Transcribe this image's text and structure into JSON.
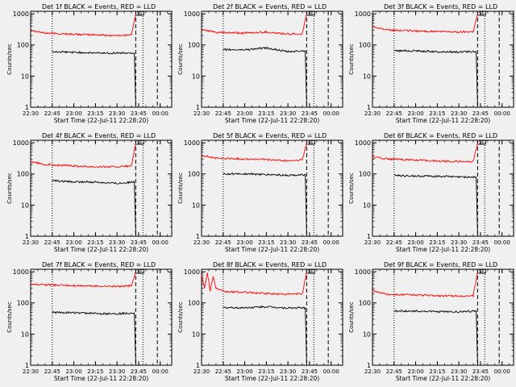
{
  "colors": {
    "background": "#f0f0f0",
    "events": "#000000",
    "lld": "#ff0000",
    "axis": "#000000"
  },
  "chart_data": [
    {
      "type": "line",
      "title": "Det 1f BLACK = Events, RED = LLD",
      "ylabel": "Counts/sec",
      "xlabel": "Start Time (22-Jul-11 22:28:20)",
      "x_ticks": [
        "22:30",
        "22:45",
        "23:00",
        "23:15",
        "23:30",
        "23:45",
        "00:00"
      ],
      "y_ticks": [
        "1",
        "10",
        "100",
        "1000"
      ],
      "yscale": "log",
      "ylim": [
        1,
        1000
      ],
      "markers": {
        "dotted": [
          "22:45",
          "23:48"
        ],
        "dashed": [
          "23:43",
          "23:58"
        ],
        "box_label": "SE"
      },
      "series": [
        {
          "color": "red",
          "x": [
            "22:30",
            "22:40",
            "23:00",
            "23:15",
            "23:30",
            "23:40",
            "23:43"
          ],
          "y": [
            300,
            240,
            220,
            210,
            200,
            210,
            1000
          ]
        },
        {
          "color": "black",
          "x": [
            "22:45",
            "23:00",
            "23:15",
            "23:30",
            "23:42",
            "23:43"
          ],
          "y": [
            60,
            58,
            55,
            55,
            55,
            1
          ]
        }
      ]
    },
    {
      "type": "line",
      "title": "Det 2f BLACK = Events, RED = LLD",
      "ylabel": "Counts/sec",
      "xlabel": "Start Time (22-Jul-11 22:28:20)",
      "x_ticks": [
        "22:30",
        "22:45",
        "23:00",
        "23:15",
        "23:30",
        "23:45",
        "00:00"
      ],
      "y_ticks": [
        "1",
        "10",
        "100",
        "1000"
      ],
      "yscale": "log",
      "ylim": [
        1,
        1000
      ],
      "markers": {
        "dotted": [
          "22:45",
          "23:48"
        ],
        "dashed": [
          "23:43",
          "23:58"
        ],
        "box_label": "SE"
      },
      "series": [
        {
          "color": "red",
          "x": [
            "22:30",
            "22:40",
            "23:00",
            "23:15",
            "23:30",
            "23:40",
            "23:43"
          ],
          "y": [
            320,
            250,
            240,
            260,
            220,
            230,
            1000
          ]
        },
        {
          "color": "black",
          "x": [
            "22:45",
            "23:00",
            "23:15",
            "23:30",
            "23:42",
            "23:43"
          ],
          "y": [
            70,
            70,
            80,
            60,
            65,
            1
          ]
        }
      ]
    },
    {
      "type": "line",
      "title": "Det 3f BLACK = Events, RED = LLD",
      "ylabel": "Counts/sec",
      "xlabel": "Start Time (22-Jul-11 22:28:20)",
      "x_ticks": [
        "22:30",
        "22:45",
        "23:00",
        "23:15",
        "23:30",
        "23:45",
        "00:00"
      ],
      "y_ticks": [
        "1",
        "10",
        "100",
        "1000"
      ],
      "yscale": "log",
      "ylim": [
        1,
        1000
      ],
      "markers": {
        "dotted": [
          "22:45",
          "23:48"
        ],
        "dashed": [
          "23:43",
          "23:58"
        ],
        "box_label": "SE"
      },
      "series": [
        {
          "color": "red",
          "x": [
            "22:30",
            "22:40",
            "23:00",
            "23:15",
            "23:30",
            "23:40",
            "23:43"
          ],
          "y": [
            400,
            300,
            280,
            270,
            260,
            270,
            1000
          ]
        },
        {
          "color": "black",
          "x": [
            "22:45",
            "23:00",
            "23:15",
            "23:30",
            "23:42",
            "23:43"
          ],
          "y": [
            65,
            65,
            60,
            60,
            60,
            1
          ]
        }
      ]
    },
    {
      "type": "line",
      "title": "Det 4f BLACK = Events, RED = LLD",
      "ylabel": "Counts/sec",
      "xlabel": "Start Time (22-Jul-11 22:28:20)",
      "x_ticks": [
        "22:30",
        "22:45",
        "23:00",
        "23:15",
        "23:30",
        "23:45",
        "00:00"
      ],
      "y_ticks": [
        "1",
        "10",
        "100",
        "1000"
      ],
      "yscale": "log",
      "ylim": [
        1,
        1000
      ],
      "markers": {
        "dotted": [
          "22:45",
          "23:48"
        ],
        "dashed": [
          "23:43",
          "23:58"
        ],
        "box_label": "SE"
      },
      "series": [
        {
          "color": "red",
          "x": [
            "22:30",
            "22:40",
            "23:00",
            "23:15",
            "23:30",
            "23:40",
            "23:43"
          ],
          "y": [
            250,
            200,
            180,
            170,
            170,
            180,
            1000
          ]
        },
        {
          "color": "black",
          "x": [
            "22:45",
            "23:00",
            "23:15",
            "23:30",
            "23:42",
            "23:43"
          ],
          "y": [
            60,
            55,
            55,
            50,
            55,
            1
          ]
        }
      ]
    },
    {
      "type": "line",
      "title": "Det 5f BLACK = Events, RED = LLD",
      "ylabel": "Counts/sec",
      "xlabel": "Start Time (22-Jul-11 22:28:20)",
      "x_ticks": [
        "22:30",
        "22:45",
        "23:00",
        "23:15",
        "23:30",
        "23:45",
        "00:00"
      ],
      "y_ticks": [
        "1",
        "10",
        "100",
        "1000"
      ],
      "yscale": "log",
      "ylim": [
        1,
        1000
      ],
      "markers": {
        "dotted": [
          "22:45",
          "23:48"
        ],
        "dashed": [
          "23:43",
          "23:58"
        ],
        "box_label": "SE"
      },
      "series": [
        {
          "color": "red",
          "x": [
            "22:30",
            "22:40",
            "23:00",
            "23:15",
            "23:30",
            "23:40",
            "23:43"
          ],
          "y": [
            400,
            320,
            300,
            290,
            260,
            280,
            1000
          ]
        },
        {
          "color": "black",
          "x": [
            "22:45",
            "23:00",
            "23:15",
            "23:30",
            "23:42",
            "23:43"
          ],
          "y": [
            100,
            100,
            95,
            90,
            95,
            1
          ]
        }
      ]
    },
    {
      "type": "line",
      "title": "Det 6f BLACK = Events, RED = LLD",
      "ylabel": "Counts/sec",
      "xlabel": "Start Time (22-Jul-11 22:28:20)",
      "x_ticks": [
        "22:30",
        "22:45",
        "23:00",
        "23:15",
        "23:30",
        "23:45",
        "00:00"
      ],
      "y_ticks": [
        "1",
        "10",
        "100",
        "1000"
      ],
      "yscale": "log",
      "ylim": [
        1,
        1000
      ],
      "markers": {
        "dotted": [
          "22:45",
          "23:48"
        ],
        "dashed": [
          "23:43",
          "23:58"
        ],
        "box_label": "SE"
      },
      "series": [
        {
          "color": "red",
          "x": [
            "22:30",
            "22:40",
            "23:00",
            "23:15",
            "23:30",
            "23:40",
            "23:43"
          ],
          "y": [
            350,
            300,
            280,
            260,
            250,
            250,
            1000
          ]
        },
        {
          "color": "black",
          "x": [
            "22:45",
            "23:00",
            "23:15",
            "23:30",
            "23:42",
            "23:43"
          ],
          "y": [
            90,
            85,
            85,
            80,
            80,
            1
          ]
        }
      ]
    },
    {
      "type": "line",
      "title": "Det 7f BLACK = Events, RED = LLD",
      "ylabel": "Counts/sec",
      "xlabel": "Start Time (22-Jul-11 22:28:20)",
      "x_ticks": [
        "22:30",
        "22:45",
        "23:00",
        "23:15",
        "23:30",
        "23:45",
        "00:00"
      ],
      "y_ticks": [
        "1",
        "10",
        "100",
        "1000"
      ],
      "yscale": "log",
      "ylim": [
        1,
        1000
      ],
      "markers": {
        "dotted": [
          "22:45",
          "23:48"
        ],
        "dashed": [
          "23:43",
          "23:58"
        ],
        "box_label": "SE"
      },
      "series": [
        {
          "color": "red",
          "x": [
            "22:30",
            "22:40",
            "23:00",
            "23:15",
            "23:30",
            "23:40",
            "23:43"
          ],
          "y": [
            400,
            380,
            360,
            350,
            340,
            350,
            1000
          ]
        },
        {
          "color": "black",
          "x": [
            "22:45",
            "23:00",
            "23:15",
            "23:30",
            "23:42",
            "23:43"
          ],
          "y": [
            50,
            48,
            46,
            45,
            48,
            1
          ]
        }
      ]
    },
    {
      "type": "line",
      "title": "Det 8f BLACK = Events, RED = LLD",
      "ylabel": "Counts/sec",
      "xlabel": "Start Time (22-Jul-11 22:28:20)",
      "x_ticks": [
        "22:30",
        "22:45",
        "23:00",
        "23:15",
        "23:30",
        "23:45",
        "00:00"
      ],
      "y_ticks": [
        "1",
        "10",
        "100",
        "1000"
      ],
      "yscale": "log",
      "ylim": [
        1,
        1000
      ],
      "markers": {
        "dotted": [
          "22:45",
          "23:48"
        ],
        "dashed": [
          "23:43",
          "23:58"
        ],
        "box_label": "SE"
      },
      "series": [
        {
          "color": "red",
          "x": [
            "22:30",
            "22:32",
            "22:34",
            "22:36",
            "22:38",
            "22:40",
            "22:45",
            "23:00",
            "23:15",
            "23:30",
            "23:40",
            "23:43"
          ],
          "y": [
            800,
            300,
            900,
            250,
            700,
            300,
            230,
            220,
            200,
            190,
            200,
            1000
          ]
        },
        {
          "color": "black",
          "x": [
            "22:45",
            "23:00",
            "23:15",
            "23:30",
            "23:42",
            "23:43"
          ],
          "y": [
            70,
            70,
            75,
            68,
            70,
            1
          ]
        }
      ]
    },
    {
      "type": "line",
      "title": "Det 9f BLACK = Events, RED = LLD",
      "ylabel": "Counts/sec",
      "xlabel": "Start Time (22-Jul-11 22:28:20)",
      "x_ticks": [
        "22:30",
        "22:45",
        "23:00",
        "23:15",
        "23:30",
        "23:45",
        "00:00"
      ],
      "y_ticks": [
        "1",
        "10",
        "100",
        "1000"
      ],
      "yscale": "log",
      "ylim": [
        1,
        1000
      ],
      "markers": {
        "dotted": [
          "22:45",
          "23:48"
        ],
        "dashed": [
          "23:43",
          "23:58"
        ],
        "box_label": "SE"
      },
      "series": [
        {
          "color": "red",
          "x": [
            "22:30",
            "22:40",
            "23:00",
            "23:15",
            "23:30",
            "23:40",
            "23:43"
          ],
          "y": [
            250,
            190,
            180,
            170,
            165,
            170,
            1000
          ]
        },
        {
          "color": "black",
          "x": [
            "22:45",
            "23:00",
            "23:15",
            "23:30",
            "23:42",
            "23:43"
          ],
          "y": [
            55,
            55,
            52,
            52,
            55,
            1
          ]
        }
      ]
    }
  ]
}
